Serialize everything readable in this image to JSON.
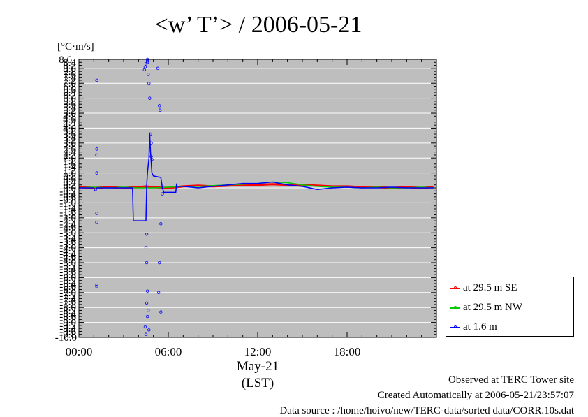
{
  "chart_data": {
    "type": "line",
    "title": "<w’ T’> / 2006-05-21",
    "ylabel": "[°C·m/s]",
    "xlabel": "May-21",
    "xlabel2": "(LST)",
    "ylim": [
      -10.0,
      8.6
    ],
    "xlim": [
      0,
      24
    ],
    "x_tick_labels": [
      {
        "x": 0,
        "label": "00:00"
      },
      {
        "x": 6,
        "label": "06:00"
      },
      {
        "x": 12,
        "label": "12:00"
      },
      {
        "x": 18,
        "label": "18:00"
      }
    ],
    "y_tick_label_min": "-10.0",
    "y_tick_label_max": "8.6",
    "grid": true,
    "legend_position": "bottom-right, outside plot",
    "series": [
      {
        "name": "at 29.5 m SE",
        "color": "#ff0000",
        "x": [
          0,
          1,
          2,
          3,
          4,
          4.5,
          5,
          6,
          7,
          8,
          9,
          10,
          11,
          12,
          13,
          14,
          15,
          16,
          17,
          18,
          19,
          20,
          21,
          22,
          23,
          23.8
        ],
        "y": [
          0.05,
          0.0,
          0.05,
          0.0,
          0.05,
          0.1,
          0.05,
          0.0,
          0.1,
          0.15,
          0.1,
          0.15,
          0.2,
          0.2,
          0.25,
          0.2,
          0.2,
          0.15,
          0.1,
          0.1,
          0.05,
          0.05,
          0.0,
          0.05,
          0.0,
          0.05
        ]
      },
      {
        "name": "at 29.5 m NW",
        "color": "#00cc00",
        "x": [
          0,
          1,
          2,
          3,
          4,
          5,
          6,
          7,
          8,
          9,
          10,
          11,
          12,
          13,
          14,
          15,
          16,
          17,
          18,
          19,
          20,
          21,
          22,
          23,
          23.8
        ],
        "y": [
          0.0,
          0.05,
          0.0,
          0.05,
          0.0,
          0.0,
          0.05,
          0.1,
          0.1,
          0.15,
          0.2,
          0.25,
          0.3,
          0.4,
          0.35,
          0.2,
          0.1,
          0.05,
          0.05,
          0.0,
          0.05,
          0.0,
          0.0,
          0.05,
          0.0
        ]
      },
      {
        "name": "at 1.6 m",
        "color": "#0000ff",
        "x": [
          0,
          1.0,
          1.05,
          1.15,
          1.2,
          3.6,
          3.65,
          4.5,
          4.55,
          4.6,
          4.7,
          4.75,
          4.8,
          4.9,
          5.0,
          5.5,
          5.6,
          5.7,
          6.5,
          6.55,
          6.6,
          7.0,
          8,
          9,
          10,
          11,
          12,
          13,
          14,
          15,
          16,
          17,
          18,
          19,
          20,
          21,
          22,
          23,
          23.8
        ],
        "y": [
          0.0,
          0.0,
          -0.2,
          -0.2,
          0.0,
          0.0,
          -2.2,
          -2.2,
          0.2,
          1.0,
          2.0,
          3.7,
          2.5,
          1.0,
          0.8,
          0.7,
          0.0,
          -0.3,
          -0.3,
          0.2,
          0.1,
          0.1,
          0.0,
          0.1,
          0.2,
          0.3,
          0.3,
          0.4,
          0.2,
          0.1,
          -0.1,
          0.0,
          0.05,
          0.0,
          0.0,
          0.05,
          0.0,
          0.0,
          0.0
        ]
      },
      {
        "name": "",
        "color": "#0000ff",
        "style": "points",
        "x": [
          1.2,
          1.2,
          1.2,
          1.2,
          1.2,
          1.2,
          1.2,
          1.2,
          4.4,
          4.45,
          4.5,
          4.6,
          4.6,
          4.6,
          4.65,
          4.7,
          4.75,
          4.8,
          4.85,
          4.85,
          4.9,
          4.5,
          4.55,
          4.6,
          4.55,
          4.45,
          4.5,
          4.6,
          4.65,
          4.7,
          4.55,
          5.3,
          5.4,
          5.45,
          5.5,
          5.4,
          5.35,
          5.5,
          5.6
        ],
        "y": [
          7.2,
          2.6,
          2.2,
          1.0,
          -1.7,
          -2.3,
          -6.5,
          -6.6,
          7.9,
          8.1,
          8.3,
          8.4,
          8.5,
          8.6,
          7.6,
          7.0,
          6.0,
          3.6,
          3.0,
          2.1,
          1.9,
          -4.0,
          -5.0,
          -6.9,
          -7.7,
          -9.3,
          -9.8,
          -8.6,
          -8.2,
          -9.5,
          -3.1,
          8.0,
          5.5,
          5.2,
          -2.4,
          -5.0,
          -7.0,
          -8.3,
          -0.4
        ]
      }
    ]
  },
  "footer": {
    "line1": "Observed at TERC Tower site",
    "line2": "Created Automatically at 2006-05-21/23:57:07",
    "line3": "Data source : /home/hoivo/new/TERC-data/sorted  data/CORR.10s.dat"
  }
}
